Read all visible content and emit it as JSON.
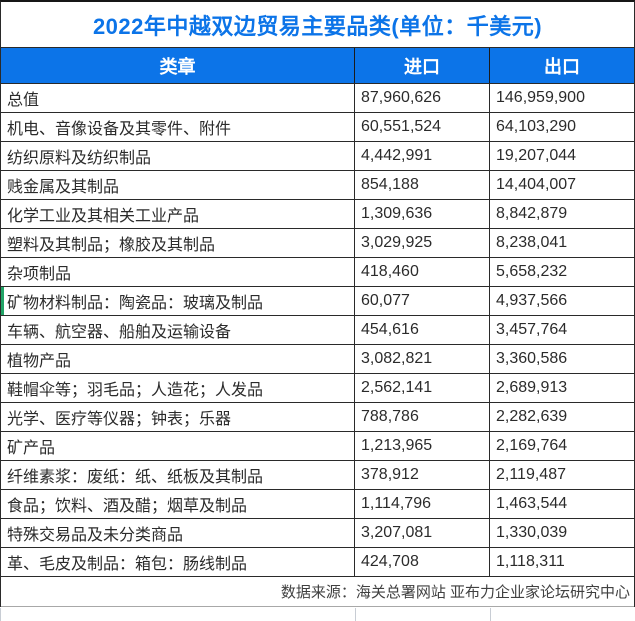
{
  "title": "2022年中越双边贸易主要品类(单位：千美元)",
  "colors": {
    "title_blue": "#0c74e8",
    "header_bg": "#0c74e8",
    "header_text": "#ffffff",
    "border_dark": "#2a2a2a",
    "border_light": "#a8a8a8",
    "green_marker": "#21a366",
    "cell_text": "#2b2b2b",
    "footer_text": "#404040"
  },
  "table": {
    "headers": [
      "类章",
      "进口",
      "出口"
    ],
    "rows": [
      {
        "category": "总值",
        "import": "87,960,626",
        "export": "146,959,900",
        "green_left_marker": false
      },
      {
        "category": "机电、音像设备及其零件、附件",
        "import": "60,551,524",
        "export": "64,103,290",
        "green_left_marker": false
      },
      {
        "category": "纺织原料及纺织制品",
        "import": "4,442,991",
        "export": "19,207,044",
        "green_left_marker": false
      },
      {
        "category": "贱金属及其制品",
        "import": "854,188",
        "export": "14,404,007",
        "green_left_marker": false
      },
      {
        "category": "化学工业及其相关工业产品",
        "import": "1,309,636",
        "export": "8,842,879",
        "green_left_marker": false
      },
      {
        "category": "塑料及其制品；橡胶及其制品",
        "import": "3,029,925",
        "export": "8,238,041",
        "green_left_marker": false
      },
      {
        "category": "杂项制品",
        "import": "418,460",
        "export": "5,658,232",
        "green_left_marker": false
      },
      {
        "category": "矿物材料制品：陶瓷品：玻璃及制品",
        "import": "60,077",
        "export": "4,937,566",
        "green_left_marker": true
      },
      {
        "category": "车辆、航空器、船舶及运输设备",
        "import": "454,616",
        "export": "3,457,764",
        "green_left_marker": false
      },
      {
        "category": "植物产品",
        "import": "3,082,821",
        "export": "3,360,586",
        "green_left_marker": false
      },
      {
        "category": "鞋帽伞等；羽毛品；人造花；人发品",
        "import": "2,562,141",
        "export": "2,689,913",
        "green_left_marker": false
      },
      {
        "category": "光学、医疗等仪器；钟表；乐器",
        "import": "788,786",
        "export": "2,282,639",
        "green_left_marker": false
      },
      {
        "category": "矿产品",
        "import": "1,213,965",
        "export": "2,169,764",
        "green_left_marker": false
      },
      {
        "category": "纤维素浆：废纸：纸、纸板及其制品",
        "import": "378,912",
        "export": "2,119,487",
        "green_left_marker": false
      },
      {
        "category": "食品；饮料、酒及醋；烟草及制品",
        "import": "1,114,796",
        "export": "1,463,544",
        "green_left_marker": false
      },
      {
        "category": "特殊交易品及未分类商品",
        "import": "3,207,081",
        "export": "1,330,039",
        "green_left_marker": false
      },
      {
        "category": "革、毛皮及制品：箱包：肠线制品",
        "import": "424,708",
        "export": "1,118,311",
        "green_left_marker": false
      }
    ]
  },
  "footer": {
    "source_note": "数据来源：海关总署网站 亚布力企业家论坛研究中心"
  },
  "chart_data": {
    "type": "table",
    "title": "2022年中越双边贸易主要品类(单位：千美元)",
    "unit": "千美元",
    "columns": [
      "类章",
      "进口",
      "出口"
    ],
    "categories": [
      "总值",
      "机电、音像设备及其零件、附件",
      "纺织原料及纺织制品",
      "贱金属及其制品",
      "化学工业及其相关工业产品",
      "塑料及其制品；橡胶及其制品",
      "杂项制品",
      "矿物材料制品：陶瓷品：玻璃及制品",
      "车辆、航空器、船舶及运输设备",
      "植物产品",
      "鞋帽伞等；羽毛品；人造花；人发品",
      "光学、医疗等仪器；钟表；乐器",
      "矿产品",
      "纤维素浆：废纸：纸、纸板及其制品",
      "食品；饮料、酒及醋；烟草及制品",
      "特殊交易品及未分类商品",
      "革、毛皮及制品：箱包：肠线制品"
    ],
    "series": [
      {
        "name": "进口",
        "values": [
          87960626,
          60551524,
          4442991,
          854188,
          1309636,
          3029925,
          418460,
          60077,
          454616,
          3082821,
          2562141,
          788786,
          1213965,
          378912,
          1114796,
          3207081,
          424708
        ]
      },
      {
        "name": "出口",
        "values": [
          146959900,
          64103290,
          19207044,
          14404007,
          8842879,
          8238041,
          5658232,
          4937566,
          3457764,
          3360586,
          2689913,
          2282639,
          2169764,
          2119487,
          1463544,
          1330039,
          1118311
        ]
      }
    ],
    "source": "数据来源：海关总署网站 亚布力企业家论坛研究中心"
  }
}
